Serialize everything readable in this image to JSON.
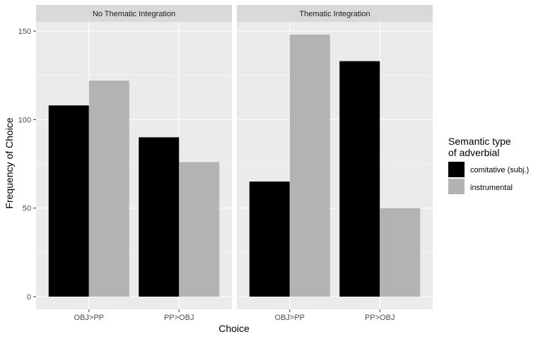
{
  "chart_data": {
    "type": "bar",
    "xlabel": "Choice",
    "ylabel": "Frequency of Choice",
    "ylim": [
      0,
      155
    ],
    "yticks": [
      "0",
      "50",
      "100",
      "150"
    ],
    "categories": [
      "OBJ>PP",
      "PP>OBJ"
    ],
    "legend": {
      "title_line1": "Semantic type",
      "title_line2": "of adverbial",
      "placement": "right"
    },
    "colors": {
      "comitative": "#000000",
      "instrumental": "#b3b3b3",
      "panel": "#ebebeb",
      "strip": "#d9d9d9",
      "grid": "#ffffff"
    },
    "panels": [
      {
        "title": "No Thematic Integration",
        "series": [
          {
            "name": "comitative (subj.)",
            "values": [
              108,
              90
            ]
          },
          {
            "name": "instrumental",
            "values": [
              122,
              76
            ]
          }
        ]
      },
      {
        "title": "Thematic Integration",
        "series": [
          {
            "name": "comitative (subj.)",
            "values": [
              65,
              133
            ]
          },
          {
            "name": "instrumental",
            "values": [
              148,
              50
            ]
          }
        ]
      }
    ],
    "grid": true
  }
}
